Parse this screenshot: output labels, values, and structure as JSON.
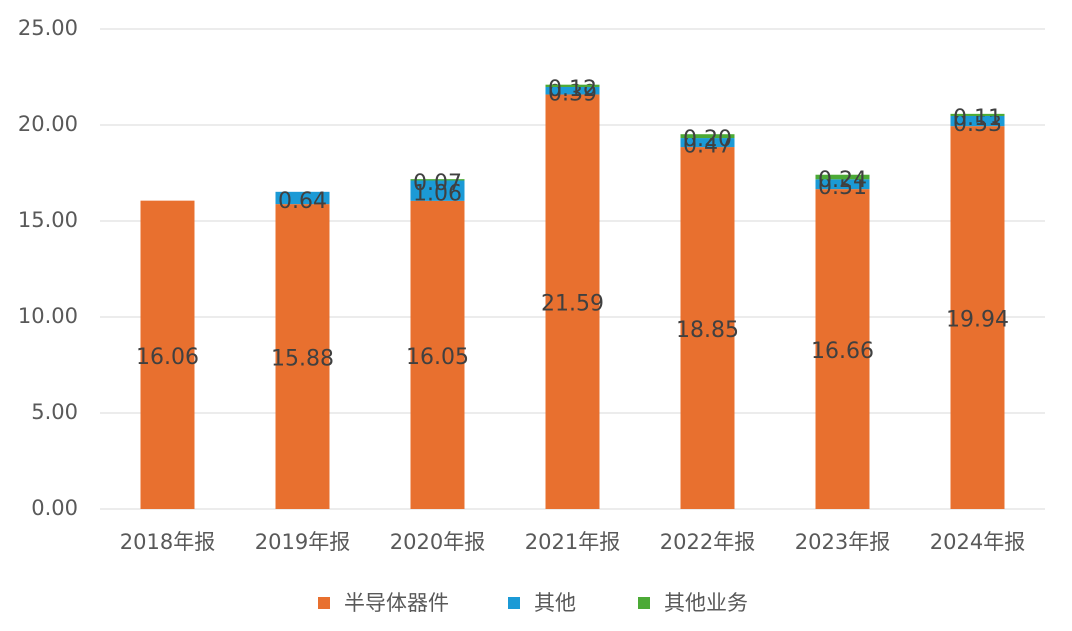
{
  "chart_data": {
    "type": "stacked_bar",
    "categories": [
      "2018年报",
      "2019年报",
      "2020年报",
      "2021年报",
      "2022年报",
      "2023年报",
      "2024年报"
    ],
    "series": [
      {
        "name": "半导体器件",
        "color": "#e8702f",
        "values": [
          16.06,
          15.88,
          16.05,
          21.59,
          18.85,
          16.66,
          19.94
        ],
        "value_labels": [
          "16.06",
          "15.88",
          "16.05",
          "21.59",
          "18.85",
          "16.66",
          "19.94"
        ]
      },
      {
        "name": "其他",
        "color": "#1b9ad6",
        "values": [
          null,
          0.64,
          1.06,
          0.39,
          0.47,
          0.51,
          0.53
        ],
        "value_labels": [
          null,
          "0.64",
          "1.06",
          "0.39",
          "0.47",
          "0.51",
          "0.53"
        ]
      },
      {
        "name": "其他业务",
        "color": "#4caa36",
        "values": [
          null,
          null,
          0.07,
          0.12,
          0.2,
          0.24,
          0.11
        ],
        "value_labels": [
          null,
          null,
          "0.07",
          "0.12",
          "0.20",
          "0.24",
          "0.11"
        ]
      }
    ],
    "ylim": [
      0,
      25
    ],
    "yticks": [
      {
        "value": 0,
        "label": "0.00"
      },
      {
        "value": 5,
        "label": "5.00"
      },
      {
        "value": 10,
        "label": "10.00"
      },
      {
        "value": 15,
        "label": "15.00"
      },
      {
        "value": 20,
        "label": "20.00"
      },
      {
        "value": 25,
        "label": "25.00"
      }
    ],
    "grid": true,
    "legend": "bottom"
  }
}
